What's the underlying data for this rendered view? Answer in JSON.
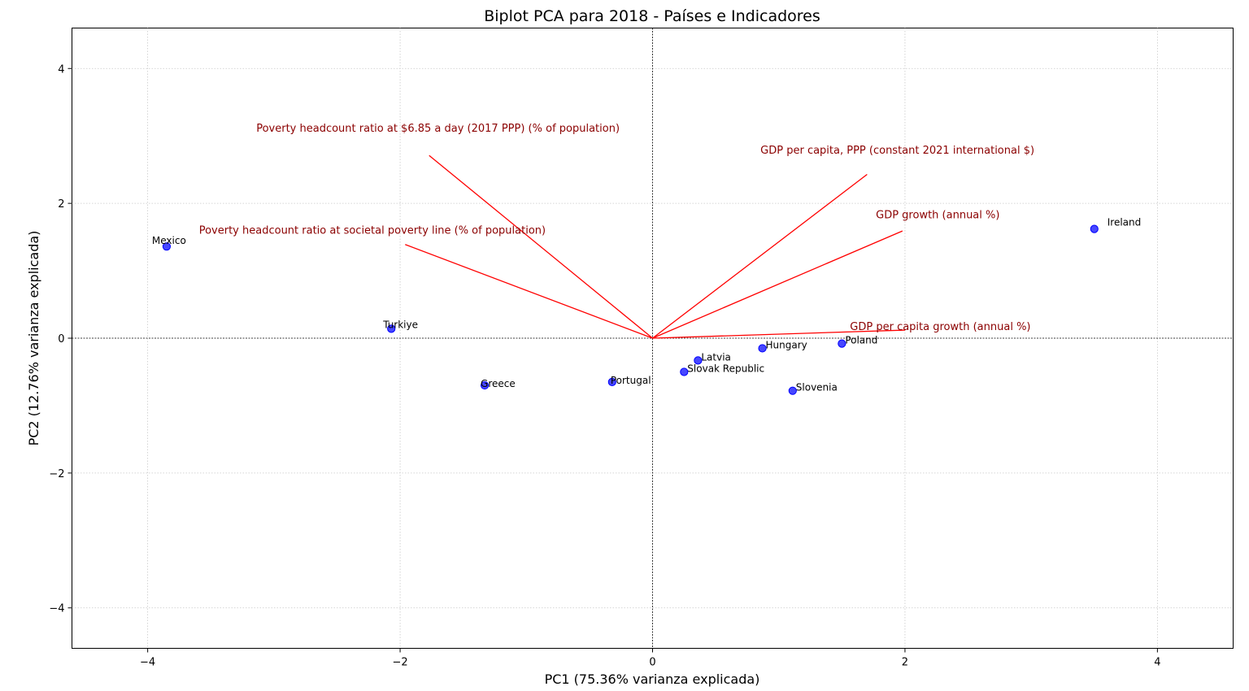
{
  "chart_data": {
    "type": "scatter",
    "title": "Biplot PCA para 2018 - Países e Indicadores",
    "xlabel": "PC1 (75.36% varianza explicada)",
    "ylabel": "PC2 (12.76% varianza explicada)",
    "xlim": [
      -4.6,
      4.6
    ],
    "ylim": [
      -4.6,
      4.6
    ],
    "xticks": [
      -4,
      -2,
      0,
      2,
      4
    ],
    "yticks": [
      -4,
      -2,
      0,
      2,
      4
    ],
    "xtick_labels": [
      "−4",
      "−2",
      "0",
      "2",
      "4"
    ],
    "ytick_labels": [
      "−4",
      "−2",
      "0",
      "2",
      "4"
    ],
    "grid": true,
    "point_color": "#0000ff",
    "loading_color": "#ff0000",
    "loading_label_color": "#8b0000",
    "points": [
      {
        "label": "Ireland",
        "x": 3.5,
        "y": 1.62
      },
      {
        "label": "Mexico",
        "x": -3.85,
        "y": 1.36
      },
      {
        "label": "Turkiye",
        "x": -2.07,
        "y": 0.14
      },
      {
        "label": "Greece",
        "x": -1.33,
        "y": -0.7
      },
      {
        "label": "Portugal",
        "x": -0.32,
        "y": -0.65
      },
      {
        "label": "Slovak Republic",
        "x": 0.25,
        "y": -0.5
      },
      {
        "label": "Latvia",
        "x": 0.36,
        "y": -0.33
      },
      {
        "label": "Hungary",
        "x": 0.87,
        "y": -0.15
      },
      {
        "label": "Poland",
        "x": 1.5,
        "y": -0.08
      },
      {
        "label": "Slovenia",
        "x": 1.11,
        "y": -0.78
      }
    ],
    "loadings": [
      {
        "label": "Poverty headcount ratio at $6.85 a day (2017 PPP) (% of population)",
        "x": -1.77,
        "y": 2.71,
        "label_x": -1.7,
        "label_y": 3.06
      },
      {
        "label": "GDP per capita, PPP (constant 2021 international $)",
        "x": 1.7,
        "y": 2.43,
        "label_x": 1.94,
        "label_y": 2.74
      },
      {
        "label": "GDP growth (annual %)",
        "x": 1.98,
        "y": 1.59,
        "label_x": 2.26,
        "label_y": 1.78
      },
      {
        "label": "Poverty headcount ratio at societal poverty line (% of population)",
        "x": -1.96,
        "y": 1.39,
        "label_x": -2.22,
        "label_y": 1.55
      },
      {
        "label": "GDP per capita growth (annual %)",
        "x": 2.0,
        "y": 0.12,
        "label_x": 2.28,
        "label_y": 0.12
      }
    ]
  }
}
